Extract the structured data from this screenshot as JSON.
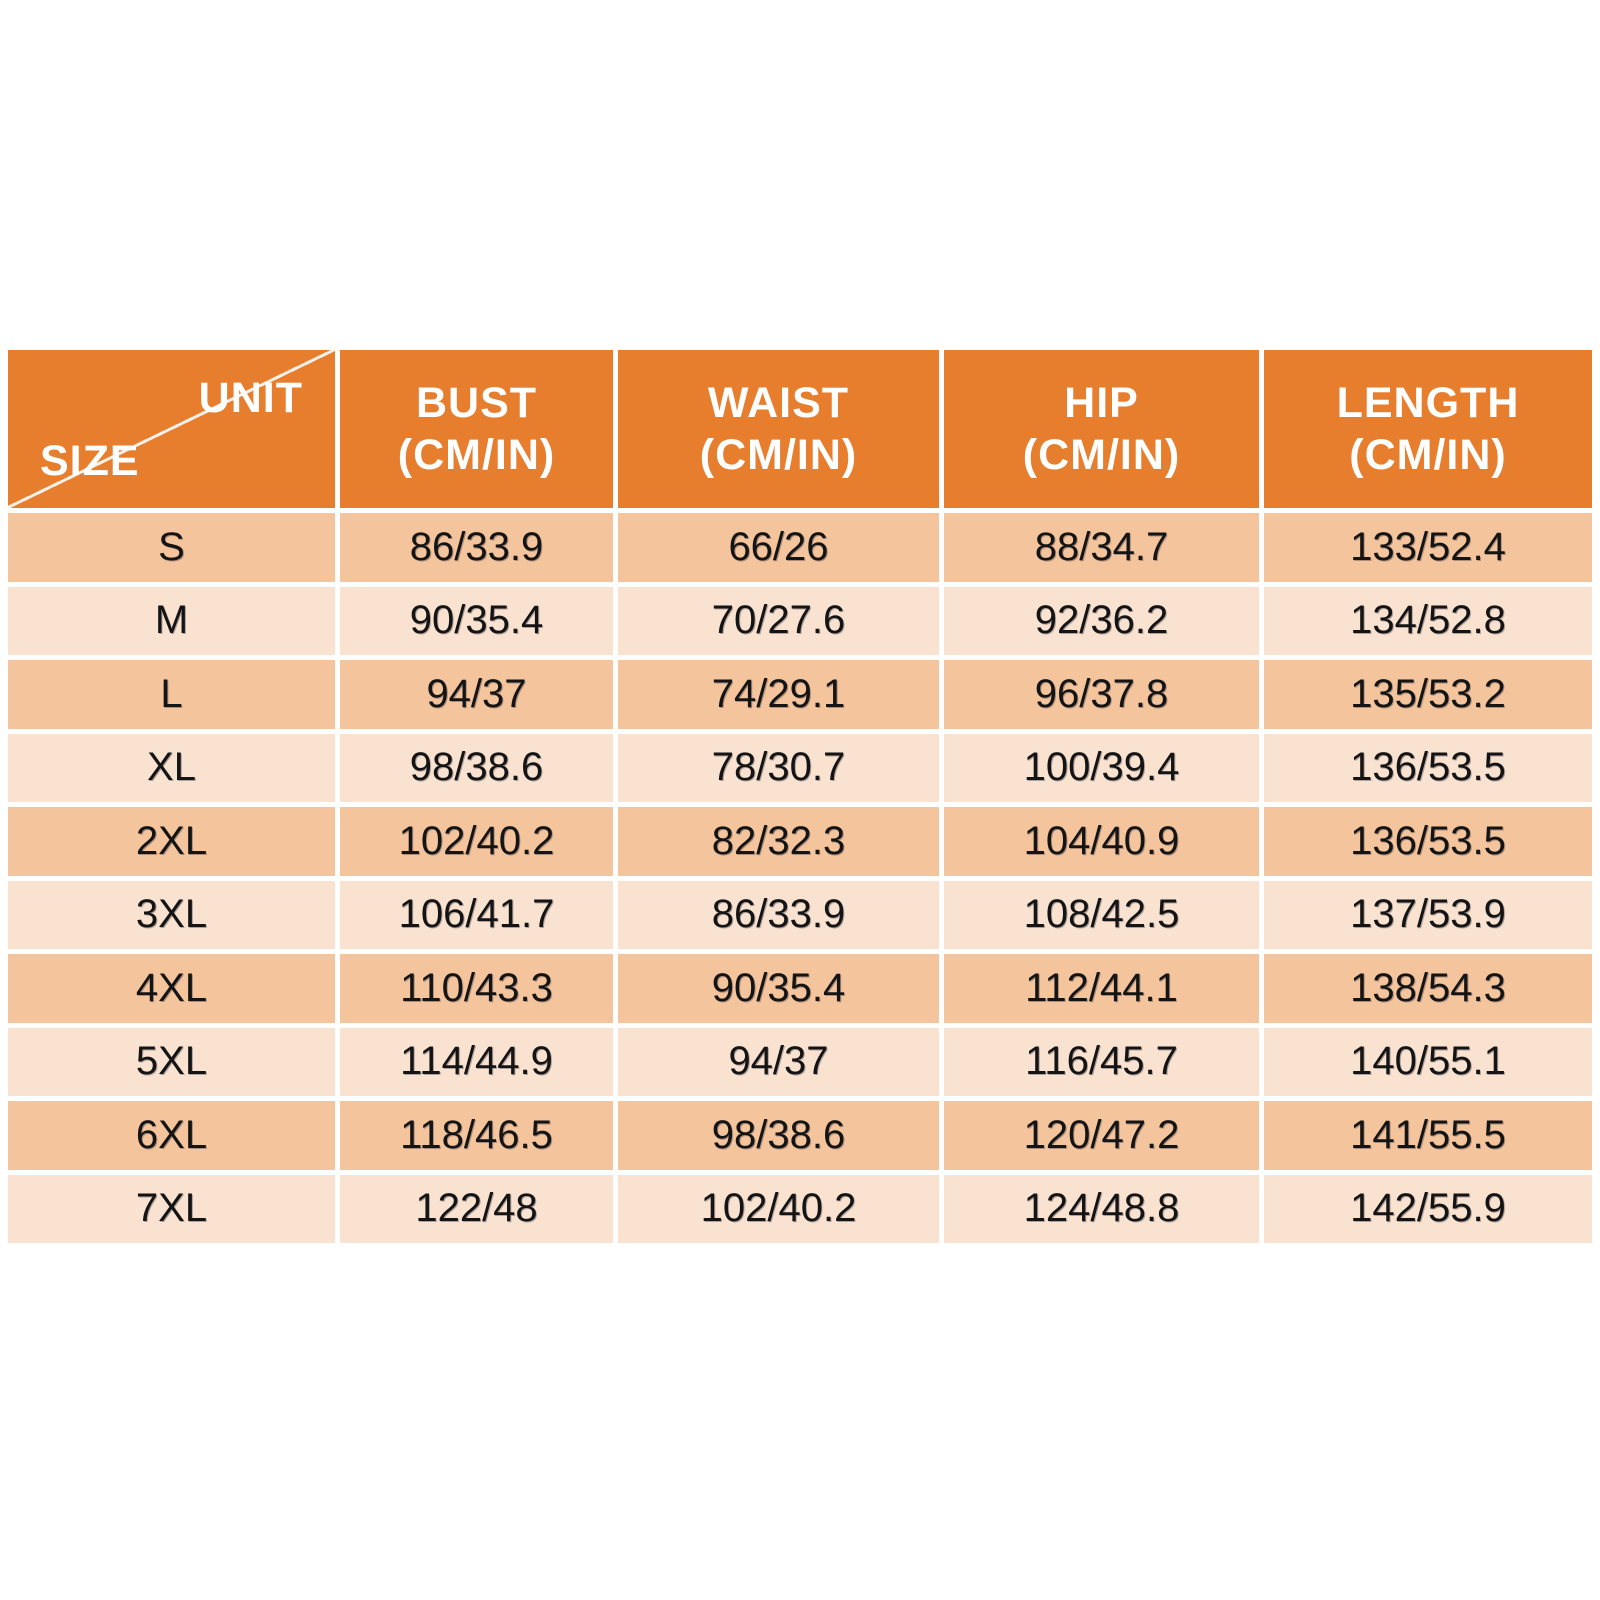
{
  "colors": {
    "header_bg": "#E77E2E",
    "row_dark": "#F4C49C",
    "row_light": "#FAE2D0",
    "header_text": "#FFFFFF",
    "data_text": "#141414",
    "page_bg": "#FFFFFF"
  },
  "table": {
    "corner": {
      "top_right": "UNIT",
      "bottom_left": "SIZE"
    },
    "headers": [
      {
        "label": "BUST",
        "unit": "(CM/IN)"
      },
      {
        "label": "WAIST",
        "unit": "(CM/IN)"
      },
      {
        "label": "HIP",
        "unit": "(CM/IN)"
      },
      {
        "label": "LENGTH",
        "unit": "(CM/IN)"
      }
    ],
    "rows": [
      {
        "size": "S",
        "bust": "86/33.9",
        "waist": "66/26",
        "hip": "88/34.7",
        "length": "133/52.4"
      },
      {
        "size": "M",
        "bust": "90/35.4",
        "waist": "70/27.6",
        "hip": "92/36.2",
        "length": "134/52.8"
      },
      {
        "size": "L",
        "bust": "94/37",
        "waist": "74/29.1",
        "hip": "96/37.8",
        "length": "135/53.2"
      },
      {
        "size": "XL",
        "bust": "98/38.6",
        "waist": "78/30.7",
        "hip": "100/39.4",
        "length": "136/53.5"
      },
      {
        "size": "2XL",
        "bust": "102/40.2",
        "waist": "82/32.3",
        "hip": "104/40.9",
        "length": "136/53.5"
      },
      {
        "size": "3XL",
        "bust": "106/41.7",
        "waist": "86/33.9",
        "hip": "108/42.5",
        "length": "137/53.9"
      },
      {
        "size": "4XL",
        "bust": "110/43.3",
        "waist": "90/35.4",
        "hip": "112/44.1",
        "length": "138/54.3"
      },
      {
        "size": "5XL",
        "bust": "114/44.9",
        "waist": "94/37",
        "hip": "116/45.7",
        "length": "140/55.1"
      },
      {
        "size": "6XL",
        "bust": "118/46.5",
        "waist": "98/38.6",
        "hip": "120/47.2",
        "length": "141/55.5"
      },
      {
        "size": "7XL",
        "bust": "122/48",
        "waist": "102/40.2",
        "hip": "124/48.8",
        "length": "142/55.9"
      }
    ]
  },
  "chart_data": {
    "type": "table",
    "title": "",
    "corner_labels": {
      "top_right": "UNIT",
      "bottom_left": "SIZE"
    },
    "columns": [
      "SIZE",
      "BUST (CM/IN)",
      "WAIST (CM/IN)",
      "HIP (CM/IN)",
      "LENGTH (CM/IN)"
    ],
    "rows": [
      [
        "S",
        "86/33.9",
        "66/26",
        "88/34.7",
        "133/52.4"
      ],
      [
        "M",
        "90/35.4",
        "70/27.6",
        "92/36.2",
        "134/52.8"
      ],
      [
        "L",
        "94/37",
        "74/29.1",
        "96/37.8",
        "135/53.2"
      ],
      [
        "XL",
        "98/38.6",
        "78/30.7",
        "100/39.4",
        "136/53.5"
      ],
      [
        "2XL",
        "102/40.2",
        "82/32.3",
        "104/40.9",
        "136/53.5"
      ],
      [
        "3XL",
        "106/41.7",
        "86/33.9",
        "108/42.5",
        "137/53.9"
      ],
      [
        "4XL",
        "110/43.3",
        "90/35.4",
        "112/44.1",
        "138/54.3"
      ],
      [
        "5XL",
        "114/44.9",
        "94/37",
        "116/45.7",
        "140/55.1"
      ],
      [
        "6XL",
        "118/46.5",
        "98/38.6",
        "120/47.2",
        "141/55.5"
      ],
      [
        "7XL",
        "122/48",
        "102/40.2",
        "124/48.8",
        "142/55.9"
      ]
    ]
  }
}
